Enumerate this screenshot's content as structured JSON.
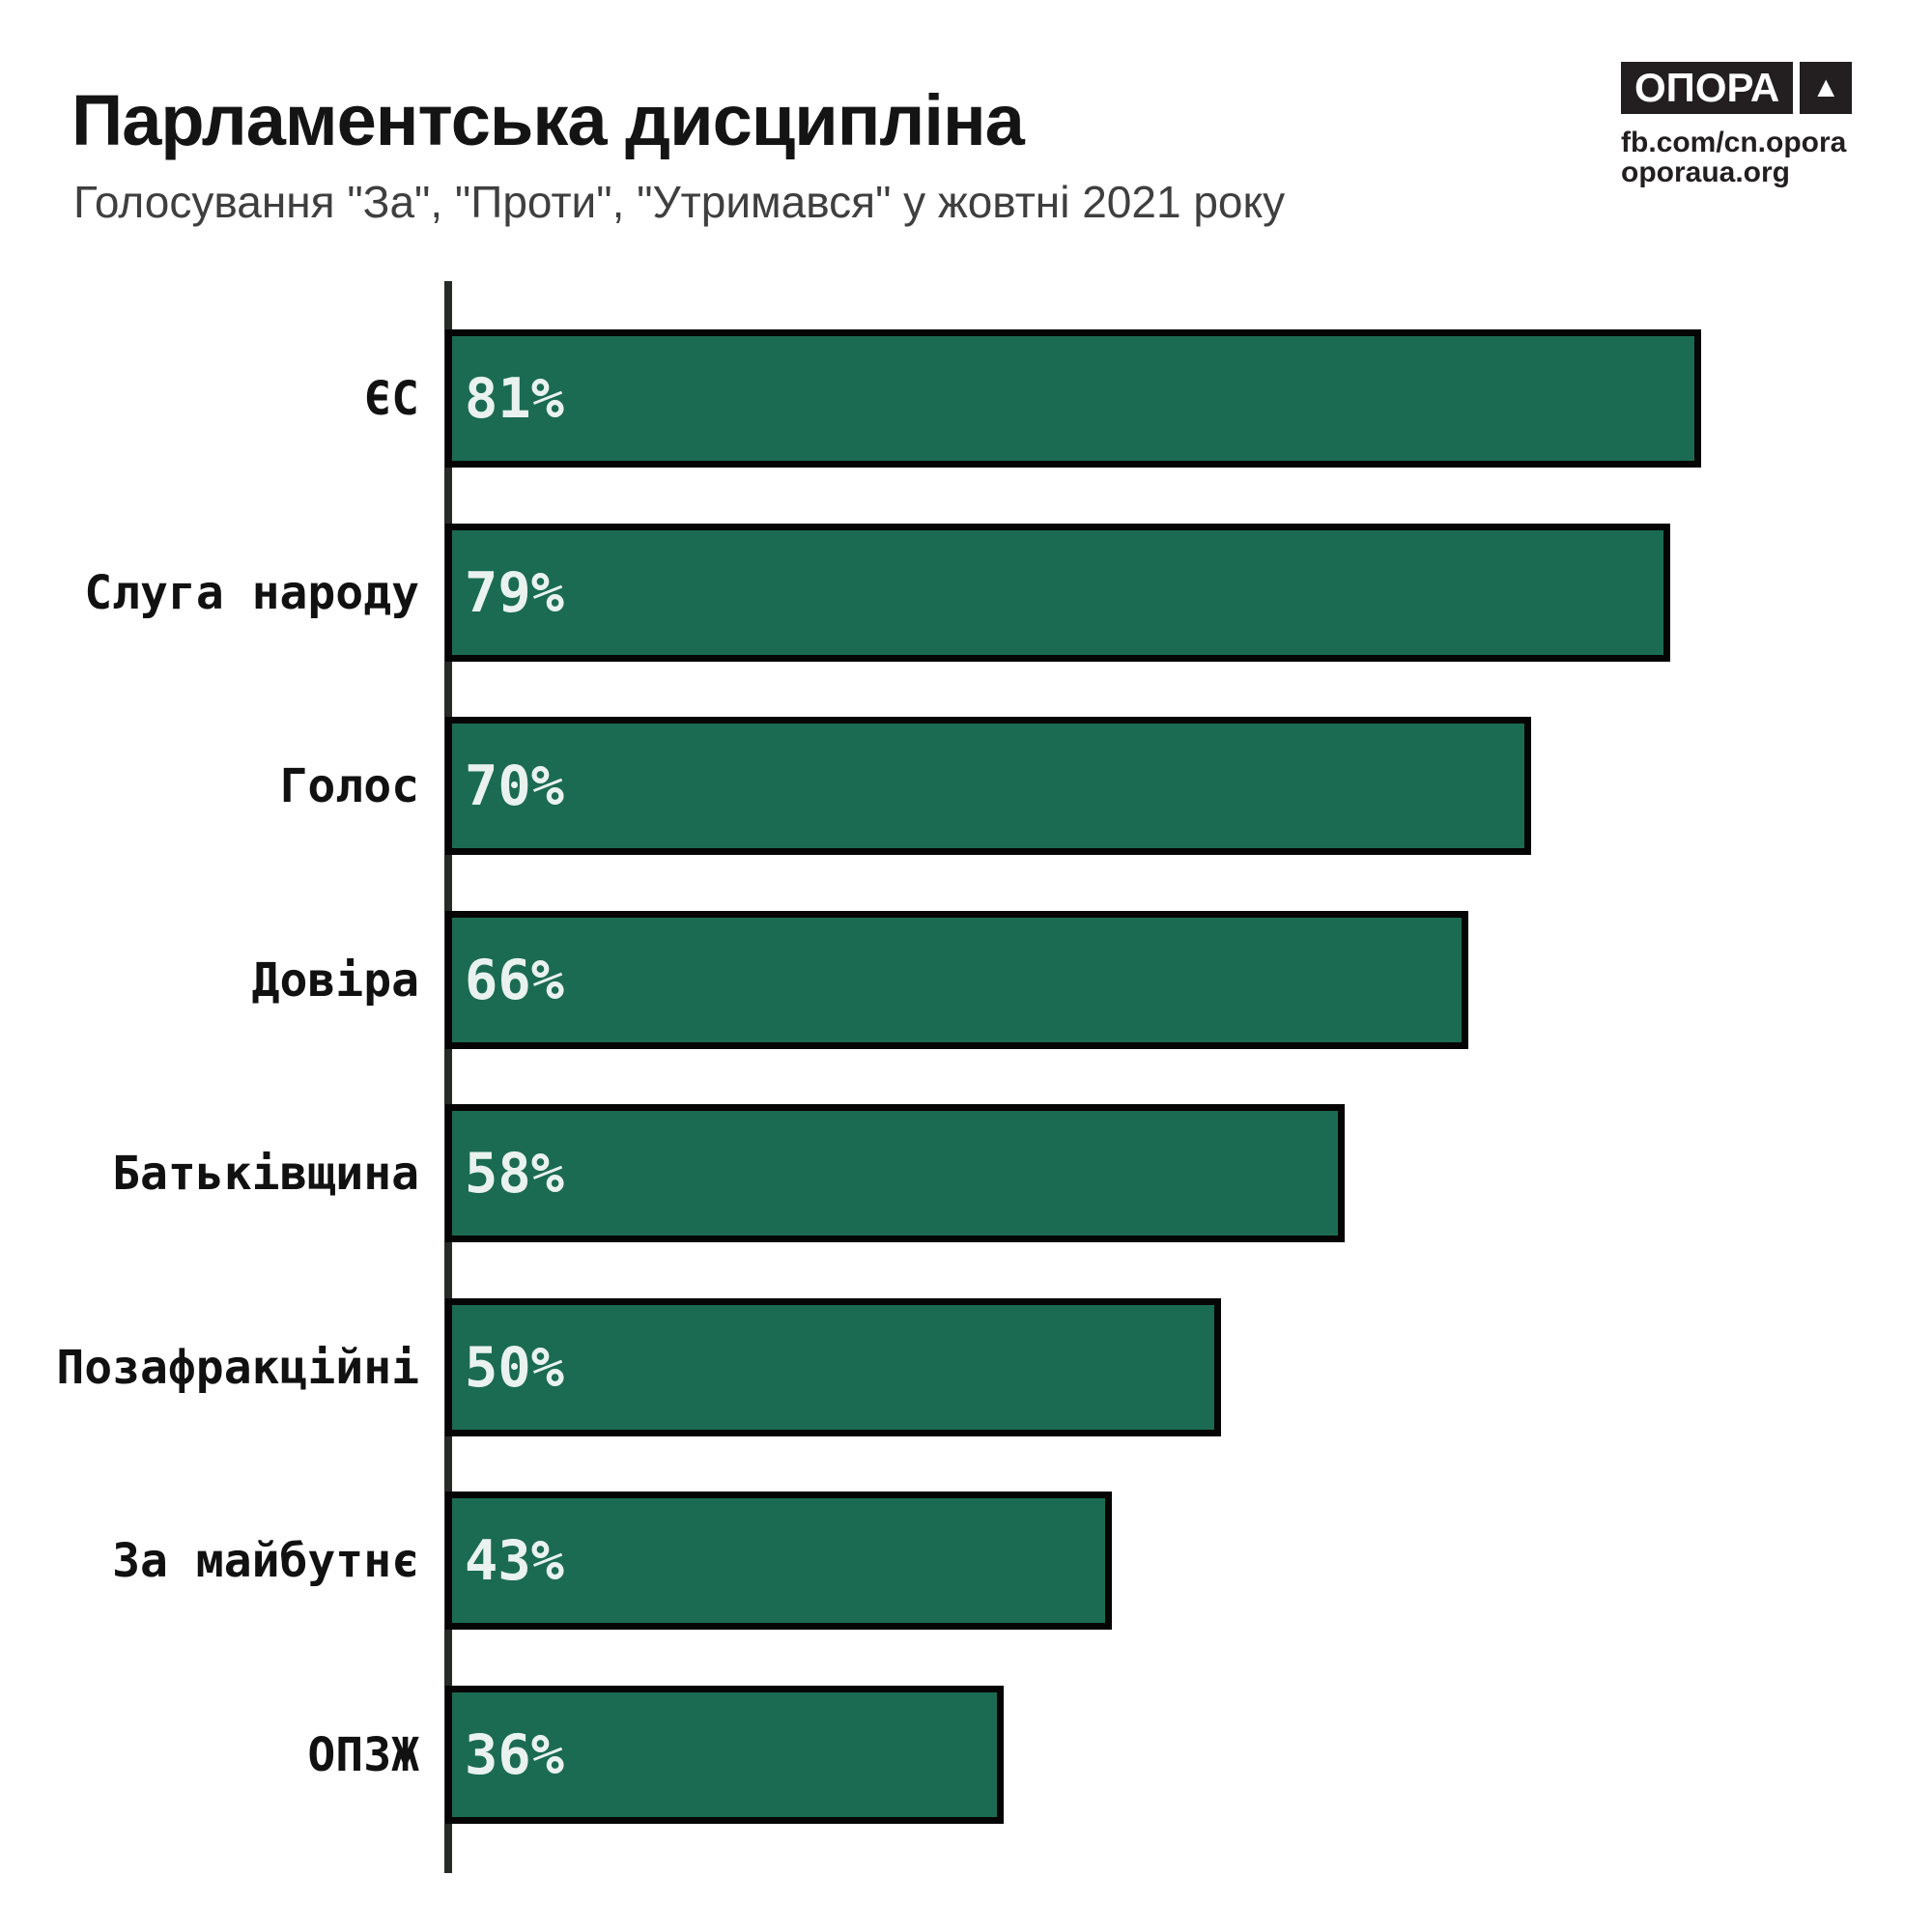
{
  "header": {
    "title": "Парламентська дисципліна",
    "subtitle": "Голосування \"За\", \"Проти\", \"Утримався\" у жовтні 2021 року"
  },
  "logo": {
    "wordmark": "ОПОРА",
    "triangle": "▲",
    "links": [
      "fb.com/cn.opora",
      "oporaua.org"
    ]
  },
  "chart_data": {
    "type": "bar",
    "orientation": "horizontal",
    "title": "Парламентська дисципліна",
    "subtitle": "Голосування \"За\", \"Проти\", \"Утримався\" у жовтні 2021 року",
    "categories": [
      "ЄС",
      "Слуга народу",
      "Голос",
      "Довіра",
      "Батьківщина",
      "Позафракційні",
      "За майбутнє",
      "ОПЗЖ"
    ],
    "values": [
      81,
      79,
      70,
      66,
      58,
      50,
      43,
      36
    ],
    "value_labels": [
      "81%",
      "79%",
      "70%",
      "66%",
      "58%",
      "50%",
      "43%",
      "36%"
    ],
    "xlabel": "",
    "ylabel": "",
    "xlim": [
      0,
      100
    ],
    "grid": false,
    "legend": false,
    "bar_color": "#1B6B52",
    "bar_border_color": "#050505",
    "value_text_color": "#E9F2EE",
    "axis_color": "#272B25"
  }
}
